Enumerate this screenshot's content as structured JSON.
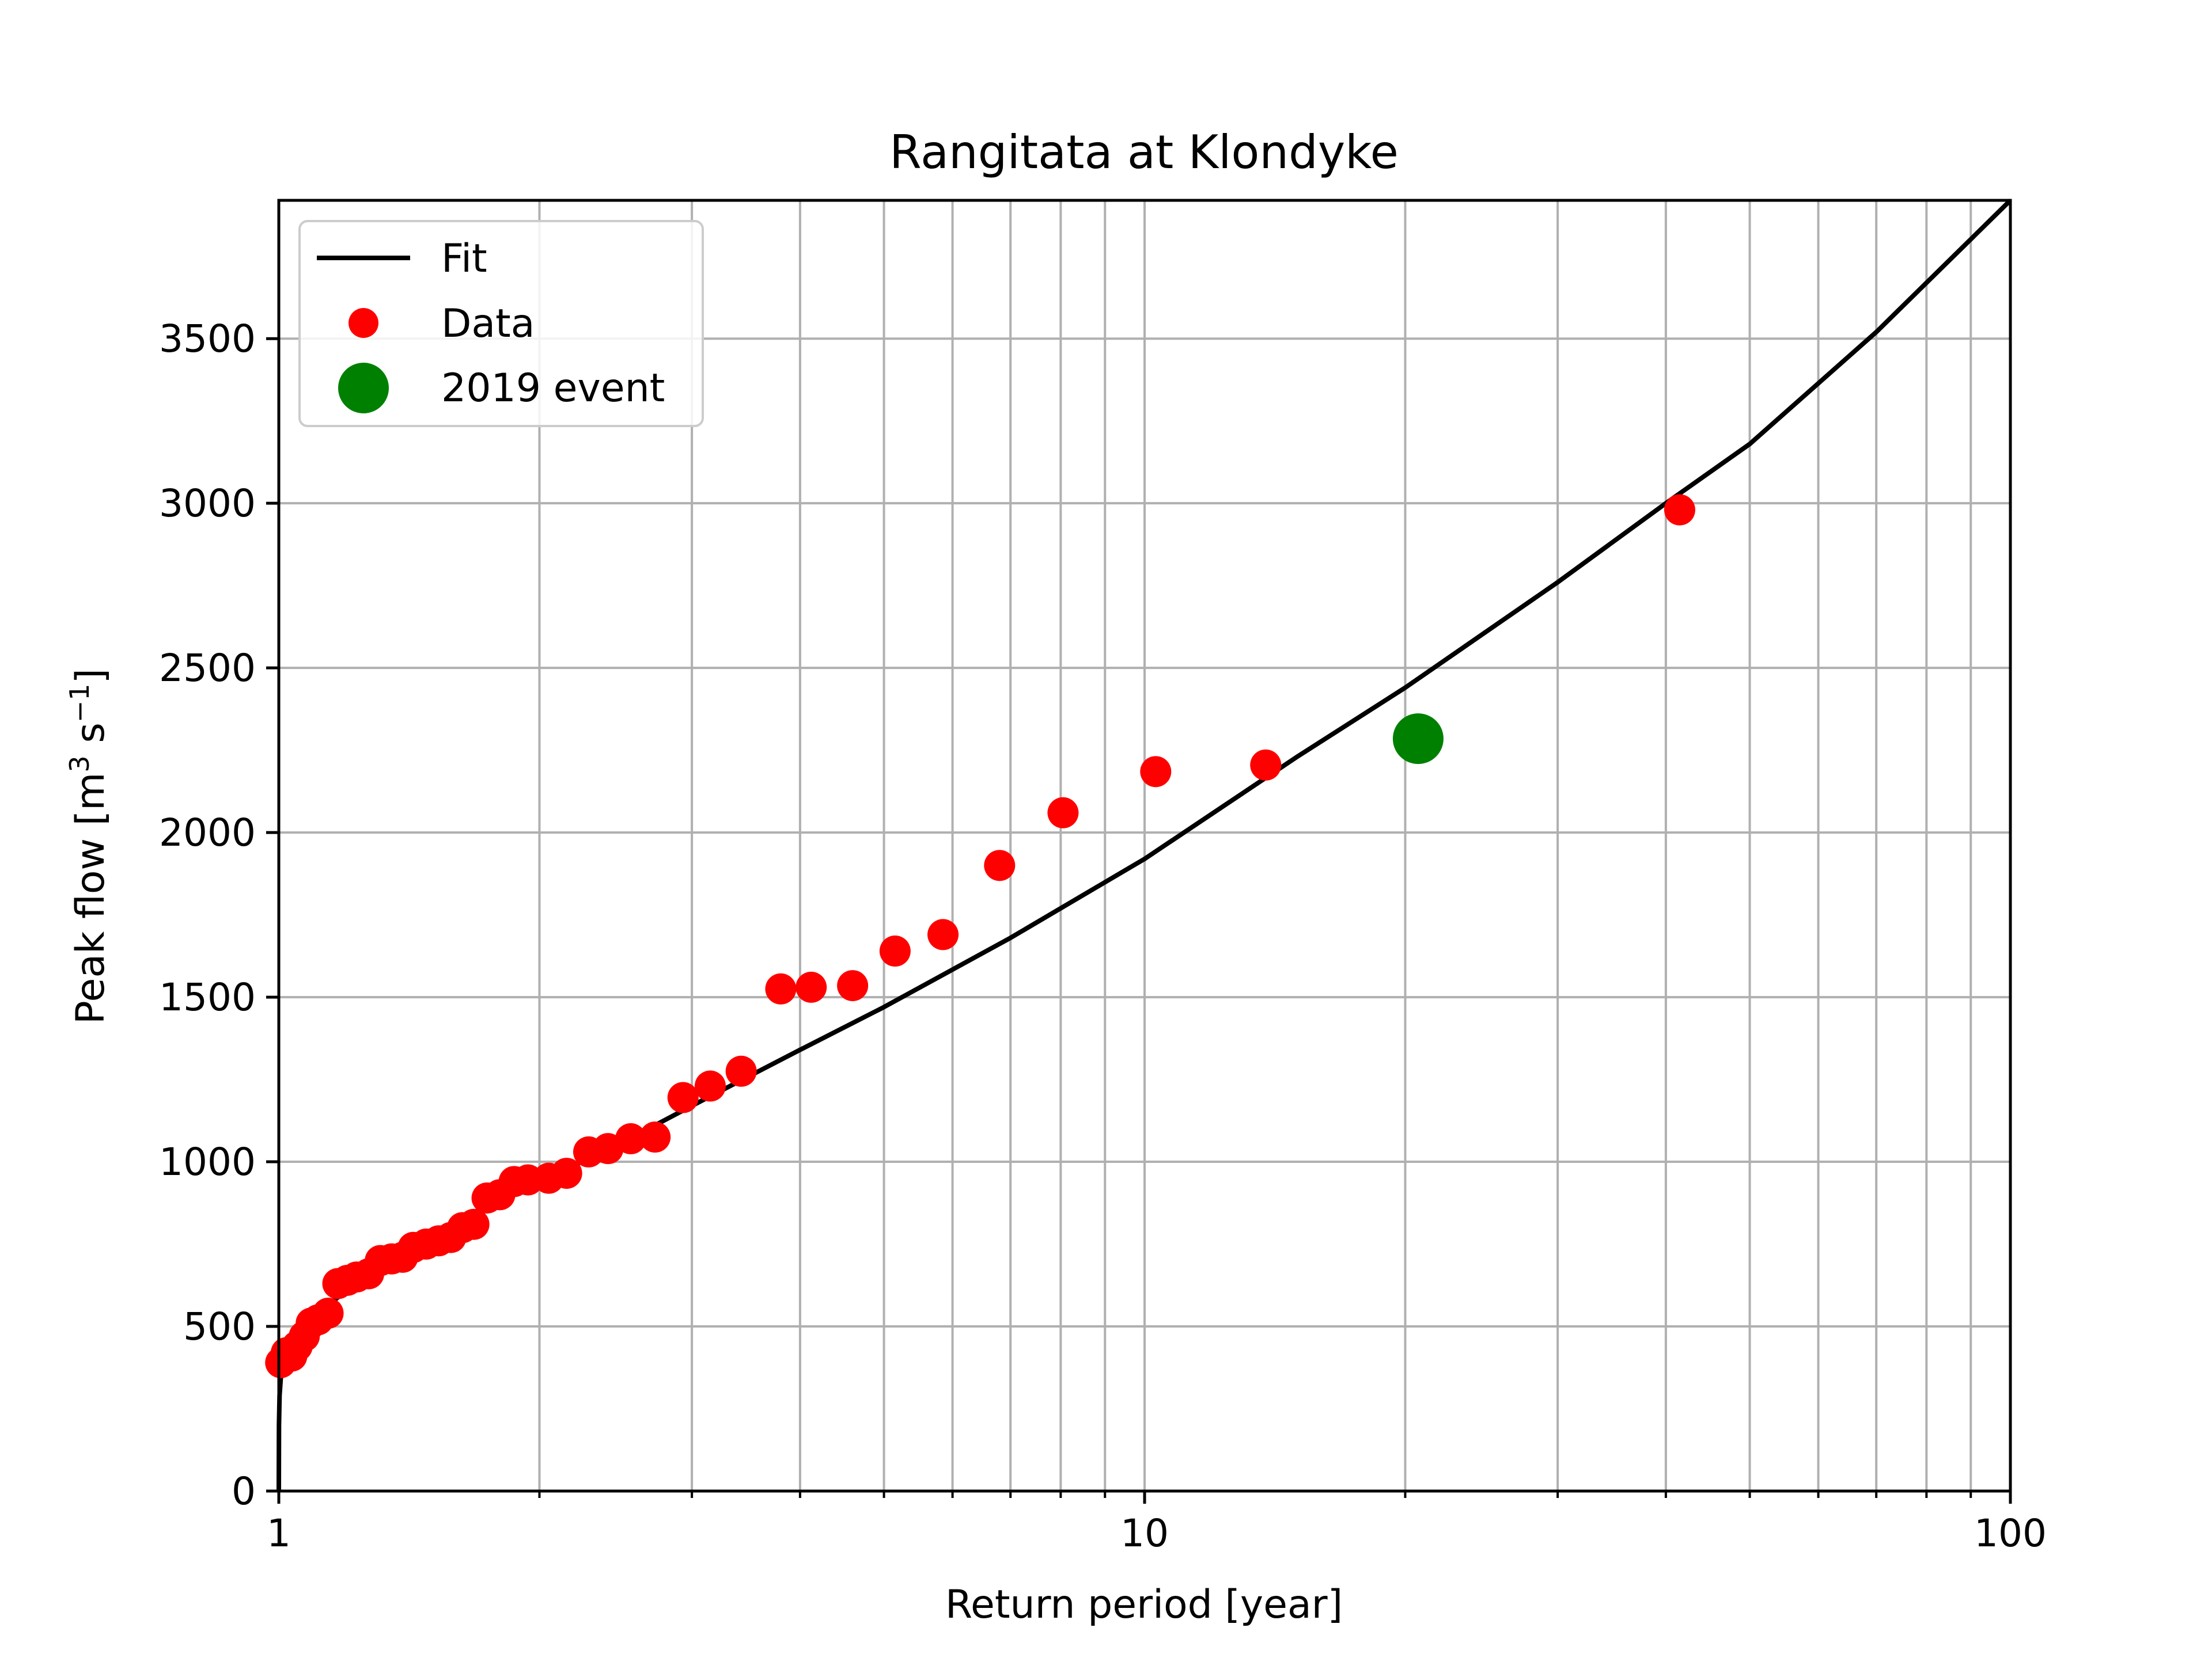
{
  "chart_data": {
    "type": "scatter",
    "title": "Rangitata at Klondyke",
    "xlabel": "Return period [year]",
    "ylabel_parts": [
      "Peak flow [m",
      "3",
      " s",
      "−1",
      "]"
    ],
    "xscale": "log",
    "xlim": [
      1,
      100
    ],
    "ylim": [
      0,
      3920
    ],
    "x_ticks": [
      1,
      10,
      100
    ],
    "x_tick_labels": [
      "1",
      "10",
      "100"
    ],
    "y_ticks": [
      0,
      500,
      1000,
      1500,
      2000,
      2500,
      3000,
      3500
    ],
    "y_tick_labels": [
      "0",
      "500",
      "1000",
      "1500",
      "2000",
      "2500",
      "3000",
      "3500"
    ],
    "grid": true,
    "legend_position": "top-left",
    "series": [
      {
        "name": "Fit",
        "kind": "line",
        "color": "#000000",
        "points": [
          [
            1.0,
            0
          ],
          [
            1.0005,
            200
          ],
          [
            1.002,
            290
          ],
          [
            1.005,
            340
          ],
          [
            1.01,
            380
          ],
          [
            1.02,
            420
          ],
          [
            1.04,
            460
          ],
          [
            1.07,
            500
          ],
          [
            1.12,
            550
          ],
          [
            1.2,
            610
          ],
          [
            1.35,
            690
          ],
          [
            1.5,
            760
          ],
          [
            1.75,
            860
          ],
          [
            2.0,
            940
          ],
          [
            2.5,
            1060
          ],
          [
            3.0,
            1170
          ],
          [
            4.0,
            1340
          ],
          [
            5.0,
            1470
          ],
          [
            7.0,
            1680
          ],
          [
            10.0,
            1920
          ],
          [
            15.0,
            2230
          ],
          [
            20.0,
            2440
          ],
          [
            30.0,
            2760
          ],
          [
            40.0,
            3000
          ],
          [
            50.0,
            3180
          ],
          [
            70.0,
            3520
          ],
          [
            100.0,
            3920
          ]
        ]
      },
      {
        "name": "Data",
        "kind": "scatter",
        "color": "#ff0000",
        "points": [
          [
            1.005,
            390
          ],
          [
            1.02,
            420
          ],
          [
            1.035,
            410
          ],
          [
            1.05,
            440
          ],
          [
            1.07,
            470
          ],
          [
            1.09,
            510
          ],
          [
            1.11,
            520
          ],
          [
            1.14,
            540
          ],
          [
            1.17,
            630
          ],
          [
            1.2,
            640
          ],
          [
            1.23,
            650
          ],
          [
            1.27,
            660
          ],
          [
            1.31,
            700
          ],
          [
            1.35,
            705
          ],
          [
            1.39,
            710
          ],
          [
            1.43,
            740
          ],
          [
            1.48,
            750
          ],
          [
            1.53,
            760
          ],
          [
            1.58,
            770
          ],
          [
            1.63,
            800
          ],
          [
            1.68,
            810
          ],
          [
            1.74,
            890
          ],
          [
            1.8,
            900
          ],
          [
            1.87,
            940
          ],
          [
            1.94,
            945
          ],
          [
            2.05,
            950
          ],
          [
            2.15,
            965
          ],
          [
            2.28,
            1030
          ],
          [
            2.4,
            1040
          ],
          [
            2.55,
            1070
          ],
          [
            2.72,
            1075
          ],
          [
            2.93,
            1195
          ],
          [
            3.15,
            1230
          ],
          [
            3.42,
            1275
          ],
          [
            3.8,
            1525
          ],
          [
            4.12,
            1530
          ],
          [
            4.6,
            1535
          ],
          [
            5.15,
            1640
          ],
          [
            5.85,
            1690
          ],
          [
            6.8,
            1900
          ],
          [
            8.05,
            2060
          ],
          [
            10.3,
            2185
          ],
          [
            13.8,
            2205
          ],
          [
            41.5,
            2980
          ]
        ]
      },
      {
        "name": "2019 event",
        "kind": "scatter",
        "color": "#008000",
        "points": [
          [
            20.7,
            2285
          ]
        ]
      }
    ]
  }
}
